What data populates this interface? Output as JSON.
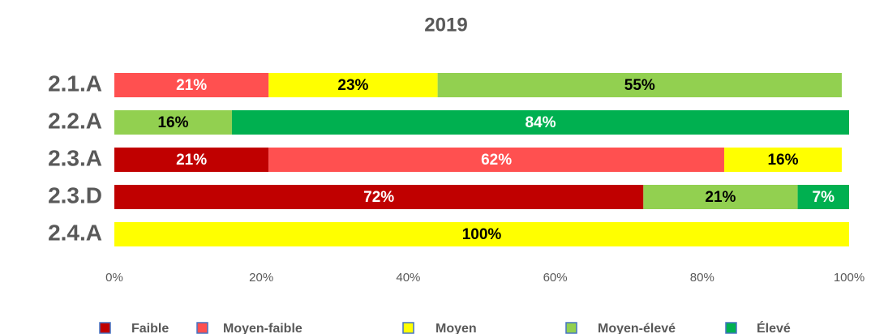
{
  "chart_data": {
    "type": "stacked_barh",
    "title": "2019",
    "categories": [
      "2.1.A",
      "2.2.A",
      "2.3.A",
      "2.3.D",
      "2.4.A"
    ],
    "series": [
      {
        "name": "Faible",
        "color": "#c00000",
        "values": [
          null,
          null,
          21,
          72,
          null
        ],
        "value_labels": [
          null,
          null,
          "21%",
          "72%",
          null
        ]
      },
      {
        "name": "Moyen-faible",
        "color": "#ff5050",
        "values": [
          21,
          null,
          62,
          null,
          null
        ],
        "value_labels": [
          "21%",
          null,
          "62%",
          null,
          null
        ]
      },
      {
        "name": "Moyen",
        "color": "#ffff00",
        "values": [
          23,
          null,
          16,
          null,
          100
        ],
        "value_labels": [
          "23%",
          null,
          "16%",
          null,
          "100%"
        ]
      },
      {
        "name": "Moyen-élevé",
        "color": "#92d050",
        "values": [
          55,
          16,
          null,
          21,
          null
        ],
        "value_labels": [
          "55%",
          "16%",
          null,
          "21%",
          null
        ]
      },
      {
        "name": "Élevé",
        "color": "#00b050",
        "values": [
          null,
          84,
          null,
          7,
          null
        ],
        "value_labels": [
          null,
          "84%",
          null,
          "7%",
          null
        ]
      }
    ],
    "xlim": [
      0,
      100
    ],
    "xticks": [
      {
        "value": 0,
        "label": "0%"
      },
      {
        "value": 20,
        "label": "20%"
      },
      {
        "value": 40,
        "label": "40%"
      },
      {
        "value": 60,
        "label": "60%"
      },
      {
        "value": 80,
        "label": "80%"
      },
      {
        "value": 100,
        "label": "100%"
      }
    ],
    "legend": "bottom"
  }
}
